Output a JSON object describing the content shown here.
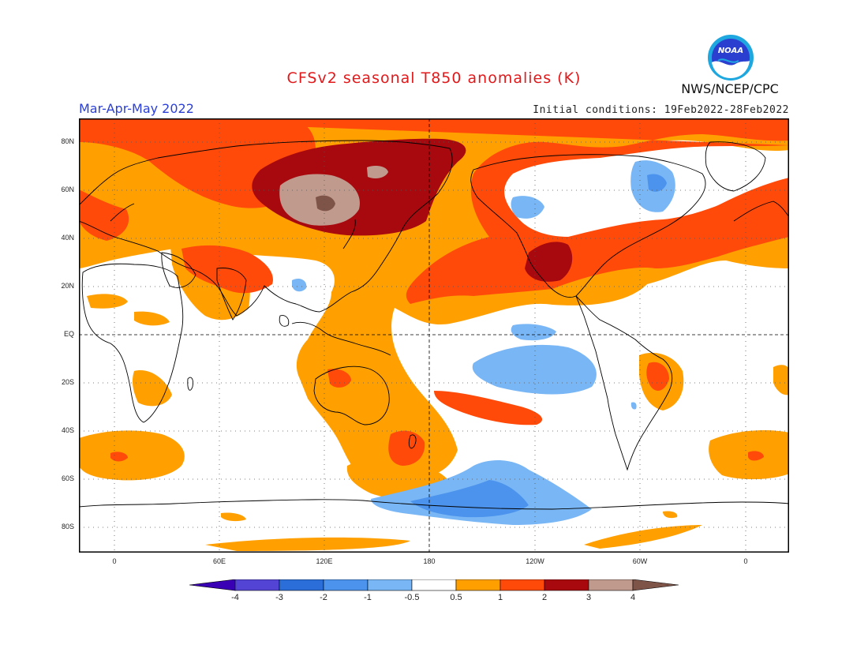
{
  "header": {
    "title": "CFSv2 seasonal T850 anomalies (K)",
    "season": "Mar-Apr-May 2022",
    "agency": "NWS/NCEP/CPC",
    "initial_conditions": "Initial conditions: 19Feb2022-28Feb2022",
    "logo_text": "NOAA"
  },
  "axes": {
    "lat_labels": [
      "80N",
      "60N",
      "40N",
      "20N",
      "EQ",
      "20S",
      "40S",
      "60S",
      "80S"
    ],
    "lon_labels": [
      "0",
      "60E",
      "120E",
      "180",
      "120W",
      "60W",
      "0"
    ]
  },
  "colorbar": {
    "tick_labels": [
      "-4",
      "-3",
      "-2",
      "-1",
      "-0.5",
      "0.5",
      "1",
      "2",
      "3",
      "4"
    ],
    "colors": [
      "#3a00b4",
      "#5344d6",
      "#2c6ed9",
      "#4b93ec",
      "#79b6f5",
      "#ffffff",
      "#ffa000",
      "#ff4a0a",
      "#a8090e",
      "#c19a8e",
      "#7e5448"
    ]
  },
  "colors": {
    "title": "#e0191b",
    "season": "#2b3fd6",
    "warm1": "#ffa000",
    "warm2": "#ff4a0a",
    "warm3": "#a8090e",
    "warm4": "#c19a8e",
    "warm5": "#7e5448",
    "cool1": "#79b6f5",
    "cool2": "#4b93ec"
  }
}
